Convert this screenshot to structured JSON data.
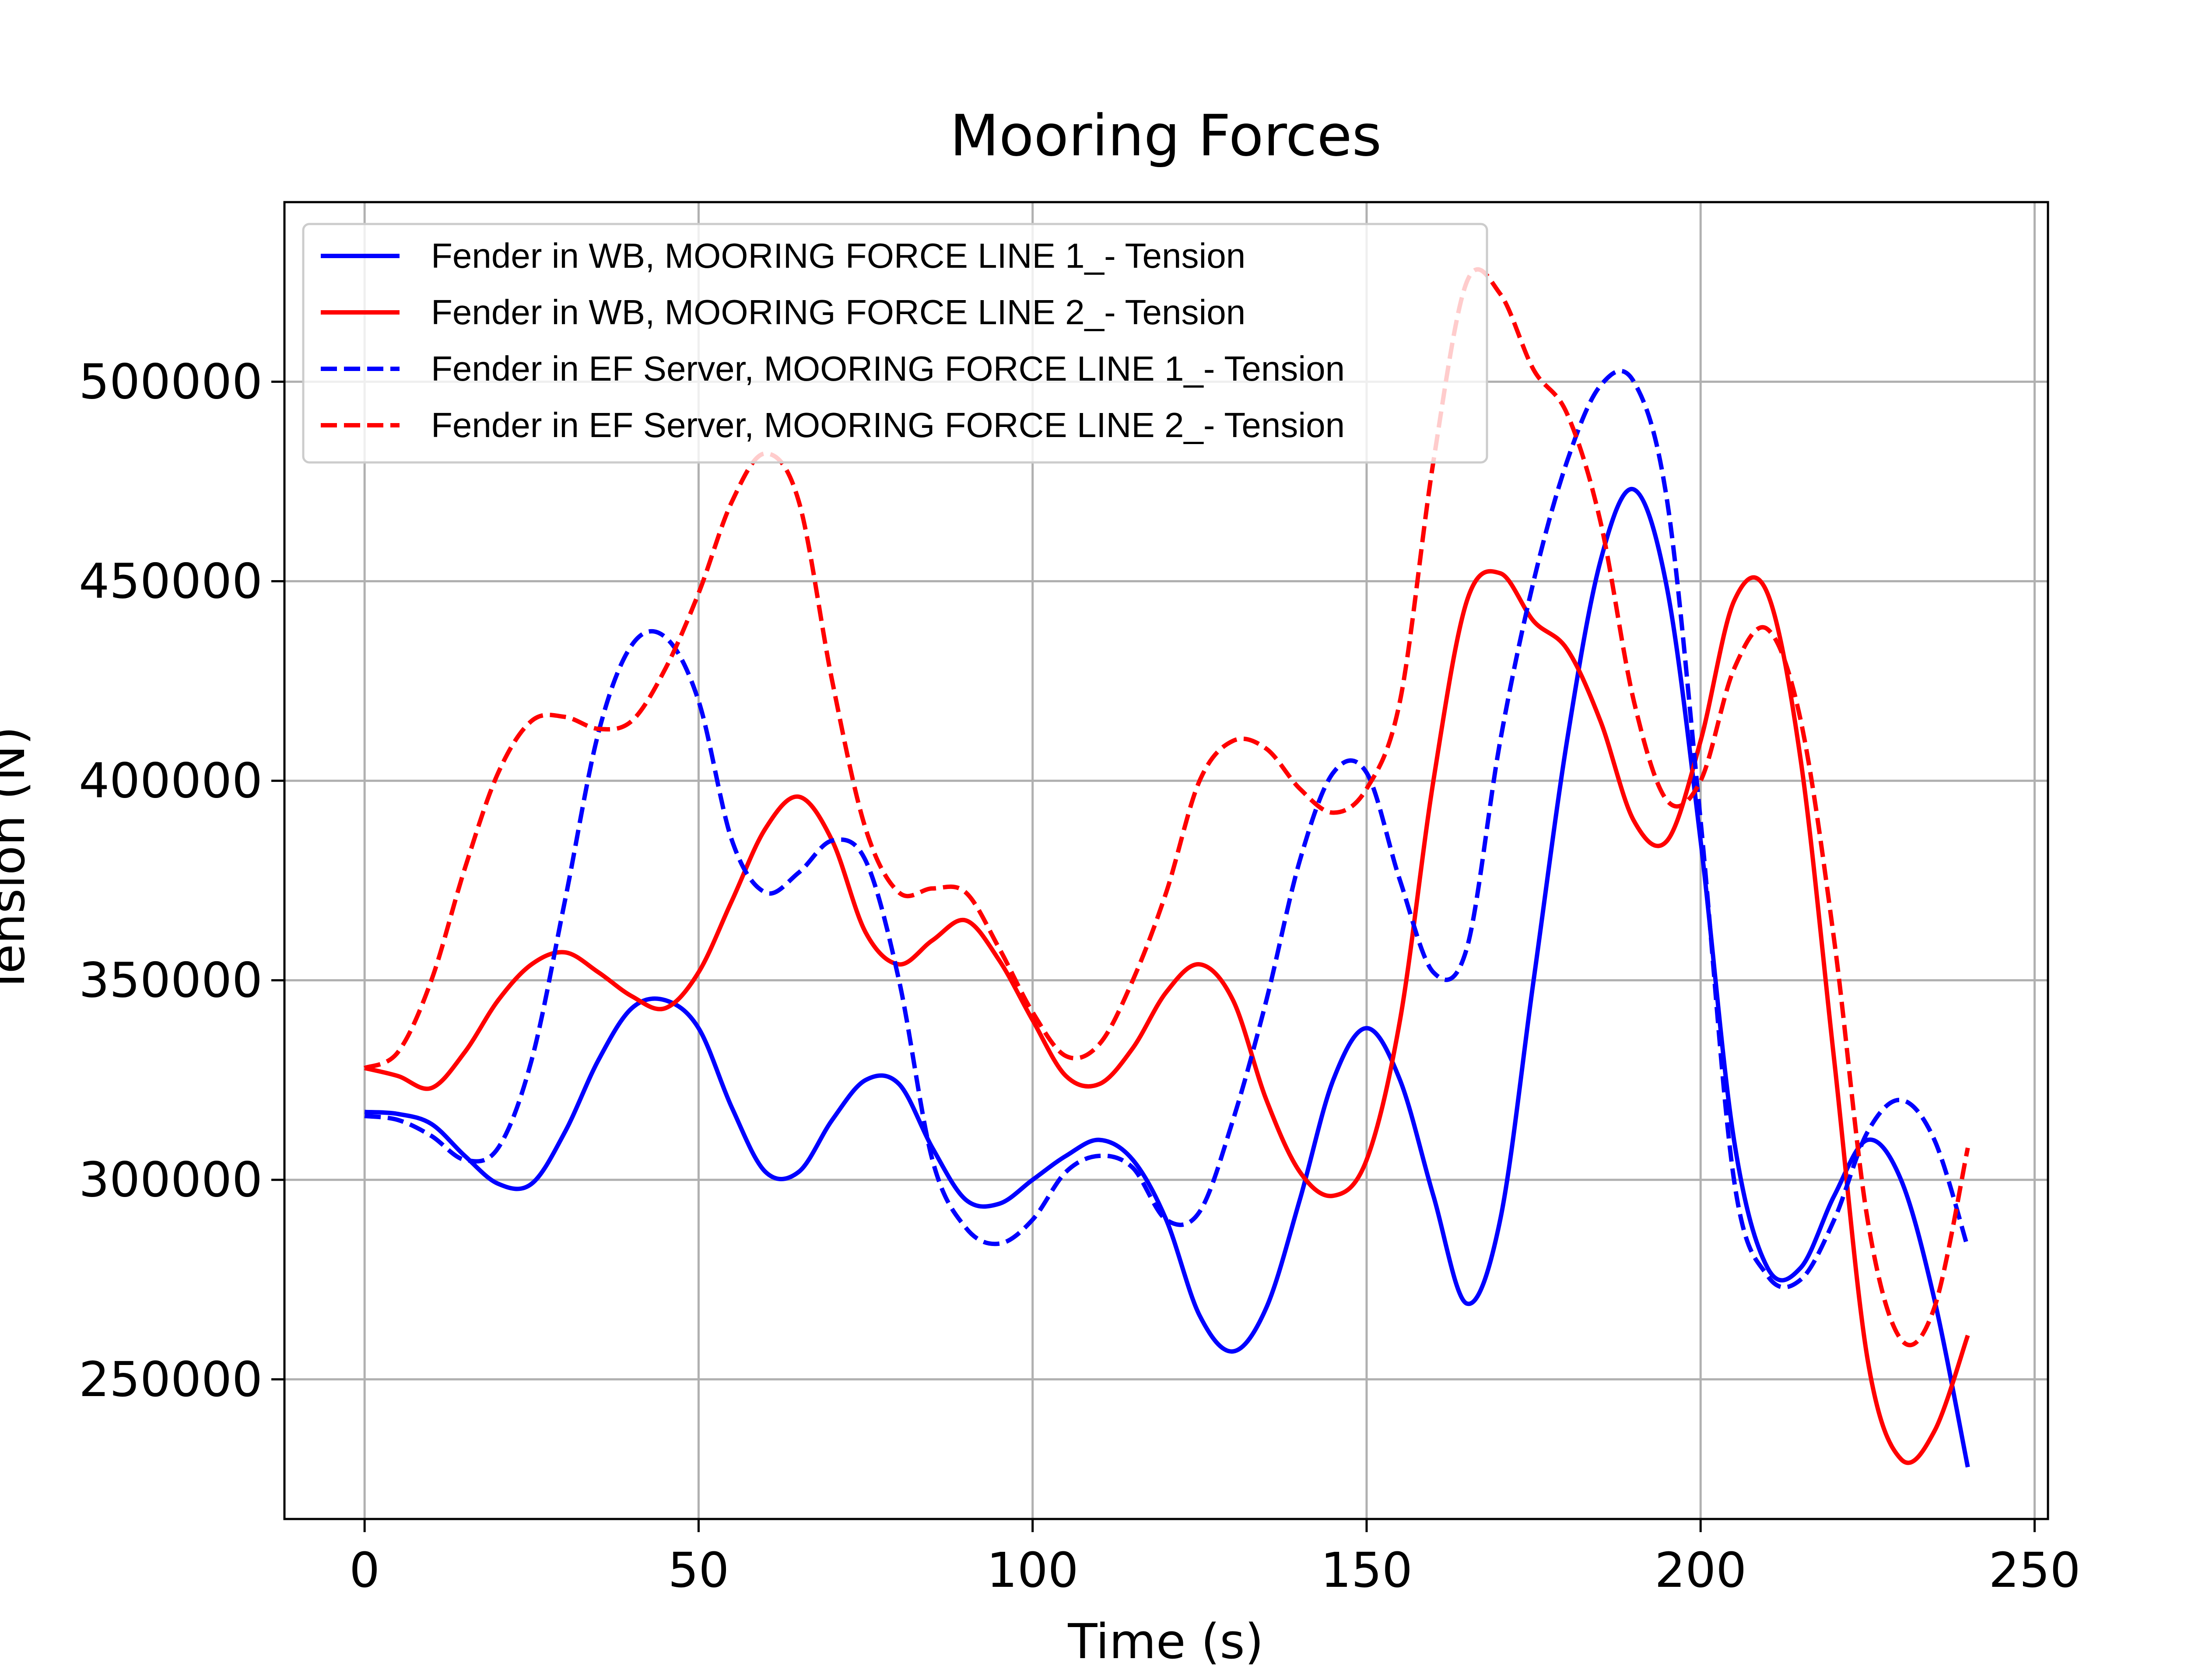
{
  "chart_data": {
    "type": "line",
    "title": "Mooring Forces",
    "xlabel": "Time (s)",
    "ylabel": "Tension (N)",
    "xlim": [
      -12,
      252
    ],
    "ylim": [
      215000,
      545000
    ],
    "xticks": [
      0,
      50,
      100,
      150,
      200,
      250
    ],
    "xtick_labels": [
      "0",
      "50",
      "100",
      "150",
      "200",
      "250"
    ],
    "yticks": [
      250000,
      300000,
      350000,
      400000,
      450000,
      500000
    ],
    "ytick_labels": [
      "250000",
      "300000",
      "350000",
      "400000",
      "450000",
      "500000"
    ],
    "grid": true,
    "legend_position": "top-left",
    "series": [
      {
        "name": "Fender in WB, MOORING FORCE  LINE 1_- Tension",
        "color": "#0000ff",
        "linestyle": "solid",
        "x": [
          0,
          5,
          10,
          15,
          20,
          25,
          30,
          35,
          40,
          45,
          50,
          55,
          60,
          65,
          70,
          75,
          80,
          85,
          90,
          95,
          100,
          105,
          110,
          115,
          120,
          125,
          130,
          135,
          140,
          145,
          150,
          155,
          160,
          165,
          170,
          175,
          180,
          185,
          190,
          195,
          200,
          205,
          210,
          215,
          220,
          225,
          230,
          235,
          240
        ],
        "y": [
          317000,
          316500,
          314000,
          306000,
          299000,
          299000,
          312000,
          330000,
          343000,
          345000,
          338000,
          318000,
          302000,
          302000,
          315000,
          325000,
          324000,
          308000,
          295000,
          294000,
          300000,
          306000,
          310000,
          305000,
          290000,
          266000,
          257000,
          268000,
          295000,
          325000,
          338000,
          325000,
          296000,
          269000,
          290000,
          350000,
          410000,
          455000,
          473000,
          448000,
          385000,
          310000,
          278000,
          278000,
          296000,
          310000,
          300000,
          270000,
          228000
        ]
      },
      {
        "name": "Fender in WB, MOORING FORCE  LINE 2_- Tension",
        "color": "#ff0000",
        "linestyle": "solid",
        "x": [
          0,
          5,
          10,
          15,
          20,
          25,
          30,
          35,
          40,
          45,
          50,
          55,
          60,
          65,
          70,
          75,
          80,
          85,
          90,
          95,
          100,
          105,
          110,
          115,
          120,
          125,
          130,
          135,
          140,
          145,
          150,
          155,
          160,
          165,
          170,
          175,
          180,
          185,
          190,
          195,
          200,
          205,
          210,
          215,
          220,
          225,
          230,
          235,
          240
        ],
        "y": [
          328000,
          326000,
          323000,
          332000,
          345000,
          354000,
          357000,
          352000,
          346000,
          343000,
          352000,
          370000,
          388000,
          396000,
          385000,
          362000,
          354000,
          360000,
          365000,
          355000,
          340000,
          326000,
          324000,
          333000,
          347000,
          354000,
          345000,
          320000,
          302000,
          296000,
          305000,
          340000,
          400000,
          445000,
          452000,
          440000,
          433000,
          415000,
          390000,
          385000,
          410000,
          445000,
          447000,
          405000,
          330000,
          255000,
          230000,
          237000,
          261000
        ]
      },
      {
        "name": "Fender in EF Server, MOORING FORCE  LINE 1_- Tension",
        "color": "#0000ff",
        "linestyle": "dashed",
        "x": [
          0,
          5,
          10,
          15,
          20,
          25,
          30,
          35,
          40,
          45,
          50,
          55,
          60,
          65,
          70,
          75,
          80,
          85,
          90,
          95,
          100,
          105,
          110,
          115,
          120,
          125,
          130,
          135,
          140,
          145,
          150,
          155,
          160,
          165,
          170,
          175,
          180,
          185,
          190,
          195,
          200,
          205,
          210,
          215,
          220,
          225,
          230,
          235,
          240
        ],
        "y": [
          316000,
          315000,
          311000,
          305000,
          308000,
          330000,
          370000,
          412000,
          434000,
          436000,
          420000,
          385000,
          372000,
          377000,
          385000,
          380000,
          350000,
          305000,
          288000,
          284000,
          290000,
          302000,
          306000,
          303000,
          290000,
          292000,
          315000,
          345000,
          380000,
          402000,
          402000,
          375000,
          352000,
          358000,
          410000,
          450000,
          480000,
          499000,
          500000,
          470000,
          390000,
          300000,
          276000,
          275000,
          290000,
          312000,
          320000,
          310000,
          283000
        ]
      },
      {
        "name": "Fender in EF Server, MOORING FORCE  LINE 2_- Tension",
        "color": "#ff0000",
        "linestyle": "dashed",
        "x": [
          0,
          5,
          10,
          15,
          20,
          25,
          30,
          35,
          40,
          45,
          50,
          55,
          60,
          65,
          70,
          75,
          80,
          85,
          90,
          95,
          100,
          105,
          110,
          115,
          120,
          125,
          130,
          135,
          140,
          145,
          150,
          155,
          160,
          165,
          170,
          175,
          180,
          185,
          190,
          195,
          200,
          205,
          210,
          215,
          220,
          225,
          230,
          235,
          240
        ],
        "y": [
          328000,
          332000,
          350000,
          378000,
          402000,
          415000,
          416000,
          413000,
          415000,
          428000,
          447000,
          470000,
          482000,
          470000,
          425000,
          388000,
          372000,
          373000,
          372000,
          358000,
          342000,
          331000,
          334000,
          350000,
          372000,
          400000,
          410000,
          408000,
          398000,
          392000,
          398000,
          420000,
          480000,
          525000,
          522000,
          503000,
          492000,
          465000,
          420000,
          395000,
          400000,
          428000,
          438000,
          415000,
          360000,
          290000,
          260000,
          268000,
          308000
        ]
      }
    ]
  }
}
